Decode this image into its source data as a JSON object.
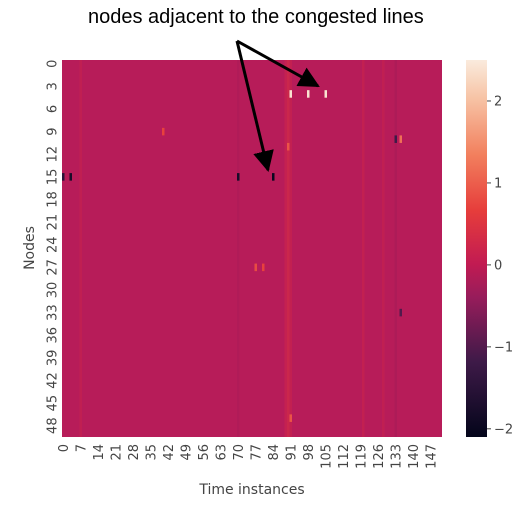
{
  "annotation": "nodes adjacent to the congested lines",
  "chart_data": {
    "type": "heatmap",
    "xlabel": "Time instances",
    "ylabel": "Nodes",
    "rows": 50,
    "cols": 152,
    "x_ticks": [
      0,
      7,
      14,
      21,
      28,
      35,
      42,
      49,
      56,
      63,
      70,
      77,
      84,
      91,
      98,
      105,
      112,
      119,
      126,
      133,
      140,
      147
    ],
    "y_ticks": [
      0,
      3,
      6,
      9,
      12,
      15,
      18,
      21,
      24,
      27,
      30,
      33,
      36,
      39,
      42,
      45,
      48
    ],
    "colorbar": {
      "min": -2.1,
      "max": 2.5,
      "ticks": [
        2,
        1,
        0,
        -1,
        -2
      ]
    },
    "baseline_value": 0,
    "highlighted_cells": [
      {
        "node": 4,
        "time": 91,
        "value": 2.4
      },
      {
        "node": 4,
        "time": 98,
        "value": 2.4
      },
      {
        "node": 4,
        "time": 105,
        "value": 2.4
      },
      {
        "node": 15,
        "time": 84,
        "value": -2.0
      },
      {
        "node": 15,
        "time": 70,
        "value": -1.8
      },
      {
        "node": 15,
        "time": 0,
        "value": -1.5
      },
      {
        "node": 15,
        "time": 3,
        "value": -1.8
      },
      {
        "node": 10,
        "time": 133,
        "value": -1.2
      },
      {
        "node": 10,
        "time": 135,
        "value": 1.2
      },
      {
        "node": 11,
        "time": 90,
        "value": 0.9
      },
      {
        "node": 9,
        "time": 40,
        "value": 0.7
      },
      {
        "node": 27,
        "time": 77,
        "value": 0.8
      },
      {
        "node": 27,
        "time": 80,
        "value": 0.7
      },
      {
        "node": 33,
        "time": 135,
        "value": -1.0
      },
      {
        "node": 47,
        "time": 91,
        "value": 0.9
      }
    ]
  }
}
